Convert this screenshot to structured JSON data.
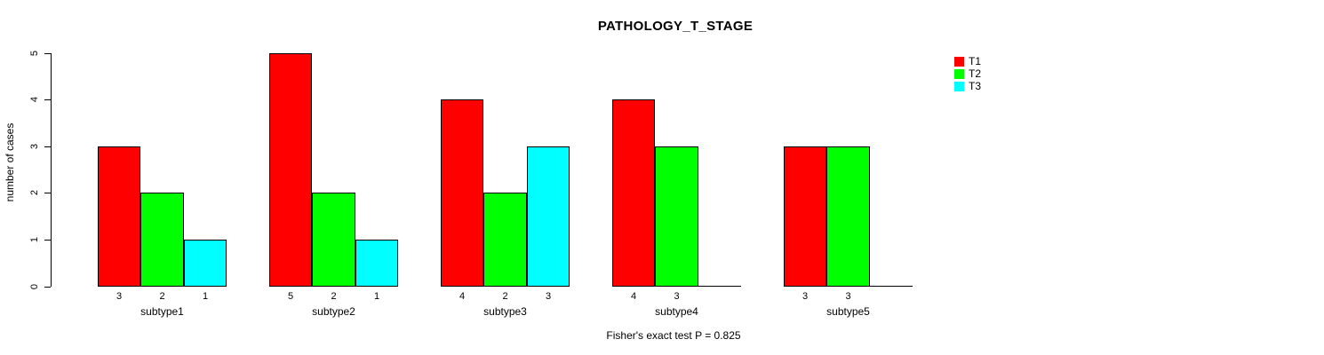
{
  "chart_data": {
    "type": "bar",
    "title": "PATHOLOGY_T_STAGE",
    "xlabel": "",
    "ylabel": "number of cases",
    "categories": [
      "subtype1",
      "subtype2",
      "subtype3",
      "subtype4",
      "subtype5"
    ],
    "series": [
      {
        "name": "T1",
        "color": "#ff0000",
        "values": [
          3,
          5,
          4,
          4,
          3
        ]
      },
      {
        "name": "T2",
        "color": "#00ff00",
        "values": [
          2,
          2,
          2,
          3,
          3
        ]
      },
      {
        "name": "T3",
        "color": "#00ffff",
        "values": [
          1,
          1,
          3,
          0,
          0
        ]
      }
    ],
    "ylim": [
      0,
      5
    ],
    "yticks": [
      "0",
      "1",
      "2",
      "3",
      "4",
      "5"
    ],
    "grid": false,
    "legend_position": "top-right",
    "bar_value_labels_shown": true,
    "zero_bars_drawn_as_baseline": true,
    "annotation": "Fisher's exact test P = 0.825",
    "colors": {
      "axis": "#000000",
      "bar_border": "#000000",
      "text": "#000000",
      "background": "#ffffff"
    }
  }
}
